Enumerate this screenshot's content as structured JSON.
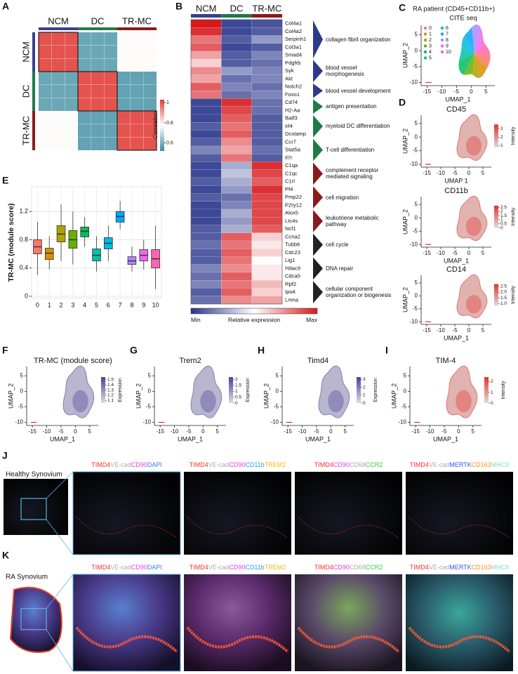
{
  "chart_data": [
    {
      "type": "heatmap",
      "panel": "A",
      "categories": [
        "NCM",
        "DC",
        "TR-MC"
      ],
      "group_colors": [
        "#3b3f8f",
        "#1f7a4d",
        "#8b1a1a"
      ],
      "values": [
        [
          1,
          0.58,
          0.78
        ],
        [
          0.58,
          1,
          0.57
        ],
        [
          0.78,
          0.57,
          1
        ]
      ],
      "colorbar_title": "Correlation",
      "zlim": [
        0.52,
        1.03
      ],
      "zticks": [
        0.6,
        0.8,
        1
      ],
      "colors": [
        "#3d8da0",
        "#ffffff",
        "#e03c36"
      ]
    },
    {
      "type": "geneheatmap",
      "panel": "B",
      "categories": [
        "NCM",
        "DC",
        "TR-MC"
      ],
      "group_colors": [
        "#3b3f8f",
        "#1f7a4d",
        "#8b1a1a"
      ],
      "zlim": [
        0,
        1
      ],
      "colors": [
        "#27348b",
        "#ffffff",
        "#d7191c"
      ],
      "colorbar_labels": [
        "Min",
        "Relative expression",
        "Max"
      ],
      "gene_sets": [
        {
          "term": "collagen fibril organization",
          "color": "#2d3a8c",
          "genes": [
            "Col4a1",
            "Col4a2",
            "Serpinh1",
            "Col3a1",
            "Smad4"
          ],
          "values": [
            [
              1,
              0.05,
              0.08
            ],
            [
              0.95,
              0.05,
              0.1
            ],
            [
              0.8,
              0.1,
              0.25
            ],
            [
              0.85,
              0.05,
              0.1
            ],
            [
              0.7,
              0.1,
              0.2
            ]
          ]
        },
        {
          "term": "blood vessel morphogenesis",
          "color": "#2d3a8c",
          "genes": [
            "Pdgfrb",
            "Syk",
            "Akt"
          ],
          "values": [
            [
              0.6,
              0.1,
              0.15
            ],
            [
              0.75,
              0.25,
              0.2
            ],
            [
              0.7,
              0.15,
              0.2
            ]
          ]
        },
        {
          "term": "blood vessel development",
          "color": "#2d3a8c",
          "genes": [
            "Notch2",
            "Foxo1"
          ],
          "values": [
            [
              0.85,
              0.2,
              0.15
            ],
            [
              0.8,
              0.15,
              0.2
            ]
          ]
        },
        {
          "term": "antigen presentation",
          "color": "#1f7a45",
          "genes": [
            "Cd74",
            "H2-Aa"
          ],
          "values": [
            [
              0.05,
              0.95,
              0.15
            ],
            [
              0.05,
              0.9,
              0.15
            ]
          ]
        },
        {
          "term": "myeloid DC differentiation",
          "color": "#1f7a45",
          "genes": [
            "Batf3",
            "Irf4",
            "Dcstamp"
          ],
          "values": [
            [
              0.05,
              0.85,
              0.1
            ],
            [
              0.1,
              0.8,
              0.1
            ],
            [
              0.05,
              0.85,
              0.1
            ]
          ]
        },
        {
          "term": "T-cell differentiation",
          "color": "#1f7a45",
          "genes": [
            "Ccr7",
            "Stat5a",
            "Il7r"
          ],
          "values": [
            [
              0.1,
              0.75,
              0.1
            ],
            [
              0.2,
              0.7,
              0.15
            ],
            [
              0.1,
              0.8,
              0.1
            ]
          ]
        },
        {
          "term": "complement receptor mediated signaling",
          "color": "#8b1a1a",
          "genes": [
            "C1qa",
            "C1qc",
            "C1rl"
          ],
          "values": [
            [
              0.05,
              0.3,
              0.95
            ],
            [
              0.05,
              0.35,
              0.9
            ],
            [
              0.1,
              0.3,
              0.85
            ]
          ]
        },
        {
          "term": "cell migration",
          "color": "#8b1a1a",
          "genes": [
            "Pf4",
            "Pmp22",
            "P2ry12"
          ],
          "values": [
            [
              0.05,
              0.25,
              0.95
            ],
            [
              0.1,
              0.15,
              0.9
            ],
            [
              0.05,
              0.2,
              0.9
            ]
          ]
        },
        {
          "term": "leukotriene metabolic pathway",
          "color": "#8b1a1a",
          "genes": [
            "Alox5",
            "Ltc4s",
            "Ncf1"
          ],
          "values": [
            [
              0.05,
              0.3,
              0.9
            ],
            [
              0.05,
              0.25,
              0.9
            ],
            [
              0.1,
              0.3,
              0.85
            ]
          ]
        },
        {
          "term": "cell cycle",
          "color": "#222222",
          "genes": [
            "Ccna2",
            "Tubb6",
            "Cdc23"
          ],
          "values": [
            [
              0.1,
              0.85,
              0.6
            ],
            [
              0.15,
              0.8,
              0.55
            ],
            [
              0.1,
              0.85,
              0.6
            ]
          ]
        },
        {
          "term": "DNA repair",
          "color": "#222222",
          "genes": [
            "Lig1",
            "Hdac9",
            "Cdca5"
          ],
          "values": [
            [
              0.1,
              0.8,
              0.5
            ],
            [
              0.2,
              0.75,
              0.55
            ],
            [
              0.15,
              0.85,
              0.55
            ]
          ]
        },
        {
          "term": "cellular component organization or biogenesis",
          "color": "#222222",
          "genes": [
            "Rpf2",
            "Ipo4",
            "Lmna"
          ],
          "values": [
            [
              0.2,
              0.8,
              0.65
            ],
            [
              0.1,
              0.85,
              0.6
            ],
            [
              0.15,
              0.75,
              0.7
            ]
          ]
        }
      ]
    },
    {
      "type": "box",
      "panel": "E",
      "ylabel": "TR-MC (module score)",
      "ylim": [
        -0.03,
        1.55
      ],
      "yticks": [
        0,
        0.4,
        0.8,
        1.2
      ],
      "grid": true,
      "categories": [
        "0",
        "1",
        "2",
        "3",
        "4",
        "5",
        "6",
        "7",
        "8",
        "9",
        "10"
      ],
      "colors": [
        "#F8766D",
        "#DB8E00",
        "#AEA200",
        "#64B200",
        "#00BD5C",
        "#00C1A7",
        "#00BADE",
        "#00A6FF",
        "#B385FF",
        "#EF67EB",
        "#FF63B6"
      ],
      "boxes": [
        {
          "low": 0.3,
          "q1": 0.6,
          "median": 0.7,
          "q3": 0.8,
          "high": 1.05
        },
        {
          "low": 0.38,
          "q1": 0.52,
          "median": 0.61,
          "q3": 0.68,
          "high": 0.85
        },
        {
          "low": 0.5,
          "q1": 0.77,
          "median": 0.88,
          "q3": 1.0,
          "high": 1.3
        },
        {
          "low": 0.45,
          "q1": 0.68,
          "median": 0.8,
          "q3": 0.93,
          "high": 1.2
        },
        {
          "low": 0.7,
          "q1": 0.84,
          "median": 0.92,
          "q3": 0.98,
          "high": 1.12
        },
        {
          "low": 0.35,
          "q1": 0.5,
          "median": 0.58,
          "q3": 0.67,
          "high": 0.85
        },
        {
          "low": 0.5,
          "q1": 0.67,
          "median": 0.75,
          "q3": 0.83,
          "high": 1.0
        },
        {
          "low": 0.95,
          "q1": 1.05,
          "median": 1.13,
          "q3": 1.2,
          "high": 1.35
        },
        {
          "low": 0.35,
          "q1": 0.45,
          "median": 0.5,
          "q3": 0.56,
          "high": 0.7
        },
        {
          "low": 0.38,
          "q1": 0.5,
          "median": 0.58,
          "q3": 0.66,
          "high": 0.8
        },
        {
          "low": 0.1,
          "q1": 0.4,
          "median": 0.53,
          "q3": 0.66,
          "high": 1.0
        }
      ]
    }
  ],
  "umaps": [
    {
      "panel": "C",
      "title": "RA patient (CD45+CD11b+)",
      "subtitle": "CITE seq",
      "xlabel": "UMAP_1",
      "ylabel": "UMAP_2",
      "xlim": [
        -17,
        8
      ],
      "ylim": [
        -11,
        8
      ],
      "xticks": [
        -15,
        -10,
        -5,
        0,
        5
      ],
      "yticks": [
        -10,
        -5,
        0,
        5
      ],
      "clusters": [
        {
          "name": "0",
          "color": "#F8766D"
        },
        {
          "name": "1",
          "color": "#DB8E00"
        },
        {
          "name": "2",
          "color": "#AEA200"
        },
        {
          "name": "3",
          "color": "#64B200"
        },
        {
          "name": "4",
          "color": "#00BD5C"
        },
        {
          "name": "5",
          "color": "#00C1A7"
        },
        {
          "name": "6",
          "color": "#00BADE"
        },
        {
          "name": "7",
          "color": "#00A6FF"
        },
        {
          "name": "8",
          "color": "#B385FF"
        },
        {
          "name": "9",
          "color": "#EF67EB"
        },
        {
          "name": "10",
          "color": "#FF63B6"
        }
      ]
    },
    {
      "panel": "D",
      "title": "CD45",
      "xlabel": "UMAP 1",
      "ylabel": "UMAP_2",
      "xlim": [
        -17,
        8
      ],
      "ylim": [
        -11,
        8
      ],
      "xticks": [
        -15,
        -10,
        -5,
        0,
        5
      ],
      "yticks": [
        -10,
        -5,
        0,
        5
      ],
      "colorbar": {
        "title": "Intensity",
        "colors": [
          "#dddddd",
          "#e8312a"
        ],
        "lim": [
          0.8,
          3.5
        ],
        "ticks": [
          1,
          2,
          3
        ]
      }
    },
    {
      "title": "CD11b",
      "xlabel": "UMAP_1",
      "ylabel": "UMAP_2",
      "xlim": [
        -17,
        8
      ],
      "ylim": [
        -11,
        8
      ],
      "xticks": [
        -15,
        -10,
        -5,
        0,
        5
      ],
      "yticks": [
        -10,
        -5,
        0,
        5
      ],
      "colorbar": {
        "title": "Intensity",
        "colors": [
          "#dddddd",
          "#e8312a"
        ],
        "lim": [
          0,
          2.7
        ],
        "ticks": [
          0,
          0.5,
          1,
          1.5,
          2,
          2.5
        ]
      }
    },
    {
      "title": "CD14",
      "xlabel": "UMAP_1",
      "ylabel": "UMAP_2",
      "xlim": [
        -17,
        8
      ],
      "ylim": [
        -11,
        8
      ],
      "xticks": [
        -15,
        -10,
        -5,
        0,
        5
      ],
      "yticks": [
        -10,
        -5,
        0,
        5
      ],
      "colorbar": {
        "title": "Intensity",
        "colors": [
          "#dddddd",
          "#e8312a"
        ],
        "lim": [
          0.8,
          2.7
        ],
        "ticks": [
          {
            "value": 1,
            "label": "1.0"
          },
          1.5,
          {
            "value": 2,
            "label": "2.0"
          },
          2.5
        ]
      }
    },
    {
      "panel": "F",
      "title": "TR-MC (module score)",
      "xlabel": "UMAP_1",
      "ylabel": "UMAP_2",
      "xlim": [
        -17,
        8
      ],
      "ylim": [
        -11,
        8
      ],
      "xticks": [
        -15,
        -10,
        -5,
        0,
        5
      ],
      "yticks": [
        -10,
        -5,
        0,
        5
      ],
      "colorbar": {
        "title": "Expression",
        "colors": [
          "#dddddd",
          "#4b3f9e"
        ],
        "lim": [
          1.05,
          1.55
        ],
        "ticks": [
          1.1,
          1.2,
          1.3,
          1.4,
          1.5
        ]
      }
    },
    {
      "panel": "G",
      "title": "Trem2",
      "xlabel": "UMAP_1",
      "ylabel": "UMAP_2",
      "xlim": [
        -17,
        8
      ],
      "ylim": [
        -11,
        8
      ],
      "xticks": [
        -15,
        -10,
        -5,
        0,
        5
      ],
      "yticks": [
        -10,
        -5,
        0,
        5
      ],
      "colorbar": {
        "title": "Expression",
        "colors": [
          "#dddddd",
          "#4b3f9e"
        ],
        "lim": [
          0,
          2.2
        ],
        "ticks": [
          0,
          0.5,
          1,
          1.5,
          2
        ]
      }
    },
    {
      "panel": "H",
      "title": "Timd4",
      "xlabel": "UMAP_1",
      "ylabel": "UMAP_2",
      "xlim": [
        -17,
        8
      ],
      "ylim": [
        -11,
        8
      ],
      "xticks": [
        -15,
        -10,
        -5,
        0,
        5
      ],
      "yticks": [
        -10,
        -5,
        0,
        5
      ],
      "colorbar": {
        "title": "Expression",
        "colors": [
          "#dddddd",
          "#4b3f9e"
        ],
        "lim": [
          0,
          3.3
        ],
        "ticks": [
          0,
          1,
          2,
          3
        ]
      }
    },
    {
      "panel": "I",
      "title": "TIM-4",
      "xlabel": "UMAP_1",
      "ylabel": "UMAP_2",
      "xlim": [
        -17,
        8
      ],
      "ylim": [
        -11,
        8
      ],
      "xticks": [
        -15,
        -10,
        -5,
        0,
        5
      ],
      "yticks": [
        -10,
        -5,
        0,
        5
      ],
      "colorbar": {
        "title": "Intensity",
        "colors": [
          "#dddddd",
          "#e8312a"
        ],
        "lim": [
          0,
          2.4
        ],
        "ticks": [
          0,
          1,
          2
        ]
      }
    }
  ],
  "imaging": [
    {
      "panel": "J",
      "sample": "Healthy Synovium",
      "images": [
        [
          {
            "text": "TIMD4",
            "color": "#ff2a2a"
          },
          {
            "text": "VE-cad",
            "color": "#aaaaaa"
          },
          {
            "text": "CD90",
            "color": "#e040e0"
          },
          {
            "text": "DAPI",
            "color": "#3a7bd5"
          }
        ],
        [
          {
            "text": "TIMD4",
            "color": "#ff2a2a"
          },
          {
            "text": "VE-cad",
            "color": "#aaaaaa"
          },
          {
            "text": "CD90",
            "color": "#e040e0"
          },
          {
            "text": "CD11b",
            "color": "#2a9df4"
          },
          {
            "text": "TREM2",
            "color": "#f5b800"
          }
        ],
        [
          {
            "text": "TIMD4",
            "color": "#ff2a2a"
          },
          {
            "text": "CD90",
            "color": "#e040e0"
          },
          {
            "text": "CD68",
            "color": "#aaaaaa"
          },
          {
            "text": "CCR2",
            "color": "#2ecc40"
          }
        ],
        [
          {
            "text": "TIMD4",
            "color": "#ff2a2a"
          },
          {
            "text": "VE-cad",
            "color": "#aaaaaa"
          },
          {
            "text": "MERTK",
            "color": "#3050ff"
          },
          {
            "text": "CD163",
            "color": "#ff9020"
          },
          {
            "text": "MHCII",
            "color": "#7fdccc"
          }
        ]
      ]
    },
    {
      "panel": "K",
      "sample": "RA Synovium",
      "images": [
        [
          {
            "text": "TIMD4",
            "color": "#ff2a2a"
          },
          {
            "text": "VE-cad",
            "color": "#aaaaaa"
          },
          {
            "text": "CD90",
            "color": "#e040e0"
          },
          {
            "text": "DAPI",
            "color": "#3a7bd5"
          }
        ],
        [
          {
            "text": "TIMD4",
            "color": "#ff2a2a"
          },
          {
            "text": "VE-cad",
            "color": "#aaaaaa"
          },
          {
            "text": "CD90",
            "color": "#e040e0"
          },
          {
            "text": "CD11b",
            "color": "#2a9df4"
          },
          {
            "text": "TREM2",
            "color": "#f5b800"
          }
        ],
        [
          {
            "text": "TIMD4",
            "color": "#ff2a2a"
          },
          {
            "text": "CD90",
            "color": "#e040e0"
          },
          {
            "text": "CD68",
            "color": "#aaaaaa"
          },
          {
            "text": "CCR2",
            "color": "#2ecc40"
          }
        ],
        [
          {
            "text": "TIMD4",
            "color": "#ff2a2a"
          },
          {
            "text": "VE-cad",
            "color": "#aaaaaa"
          },
          {
            "text": "MERTK",
            "color": "#3050ff"
          },
          {
            "text": "CD163",
            "color": "#ff9020"
          },
          {
            "text": "MHCII",
            "color": "#7fdccc"
          }
        ]
      ]
    }
  ]
}
